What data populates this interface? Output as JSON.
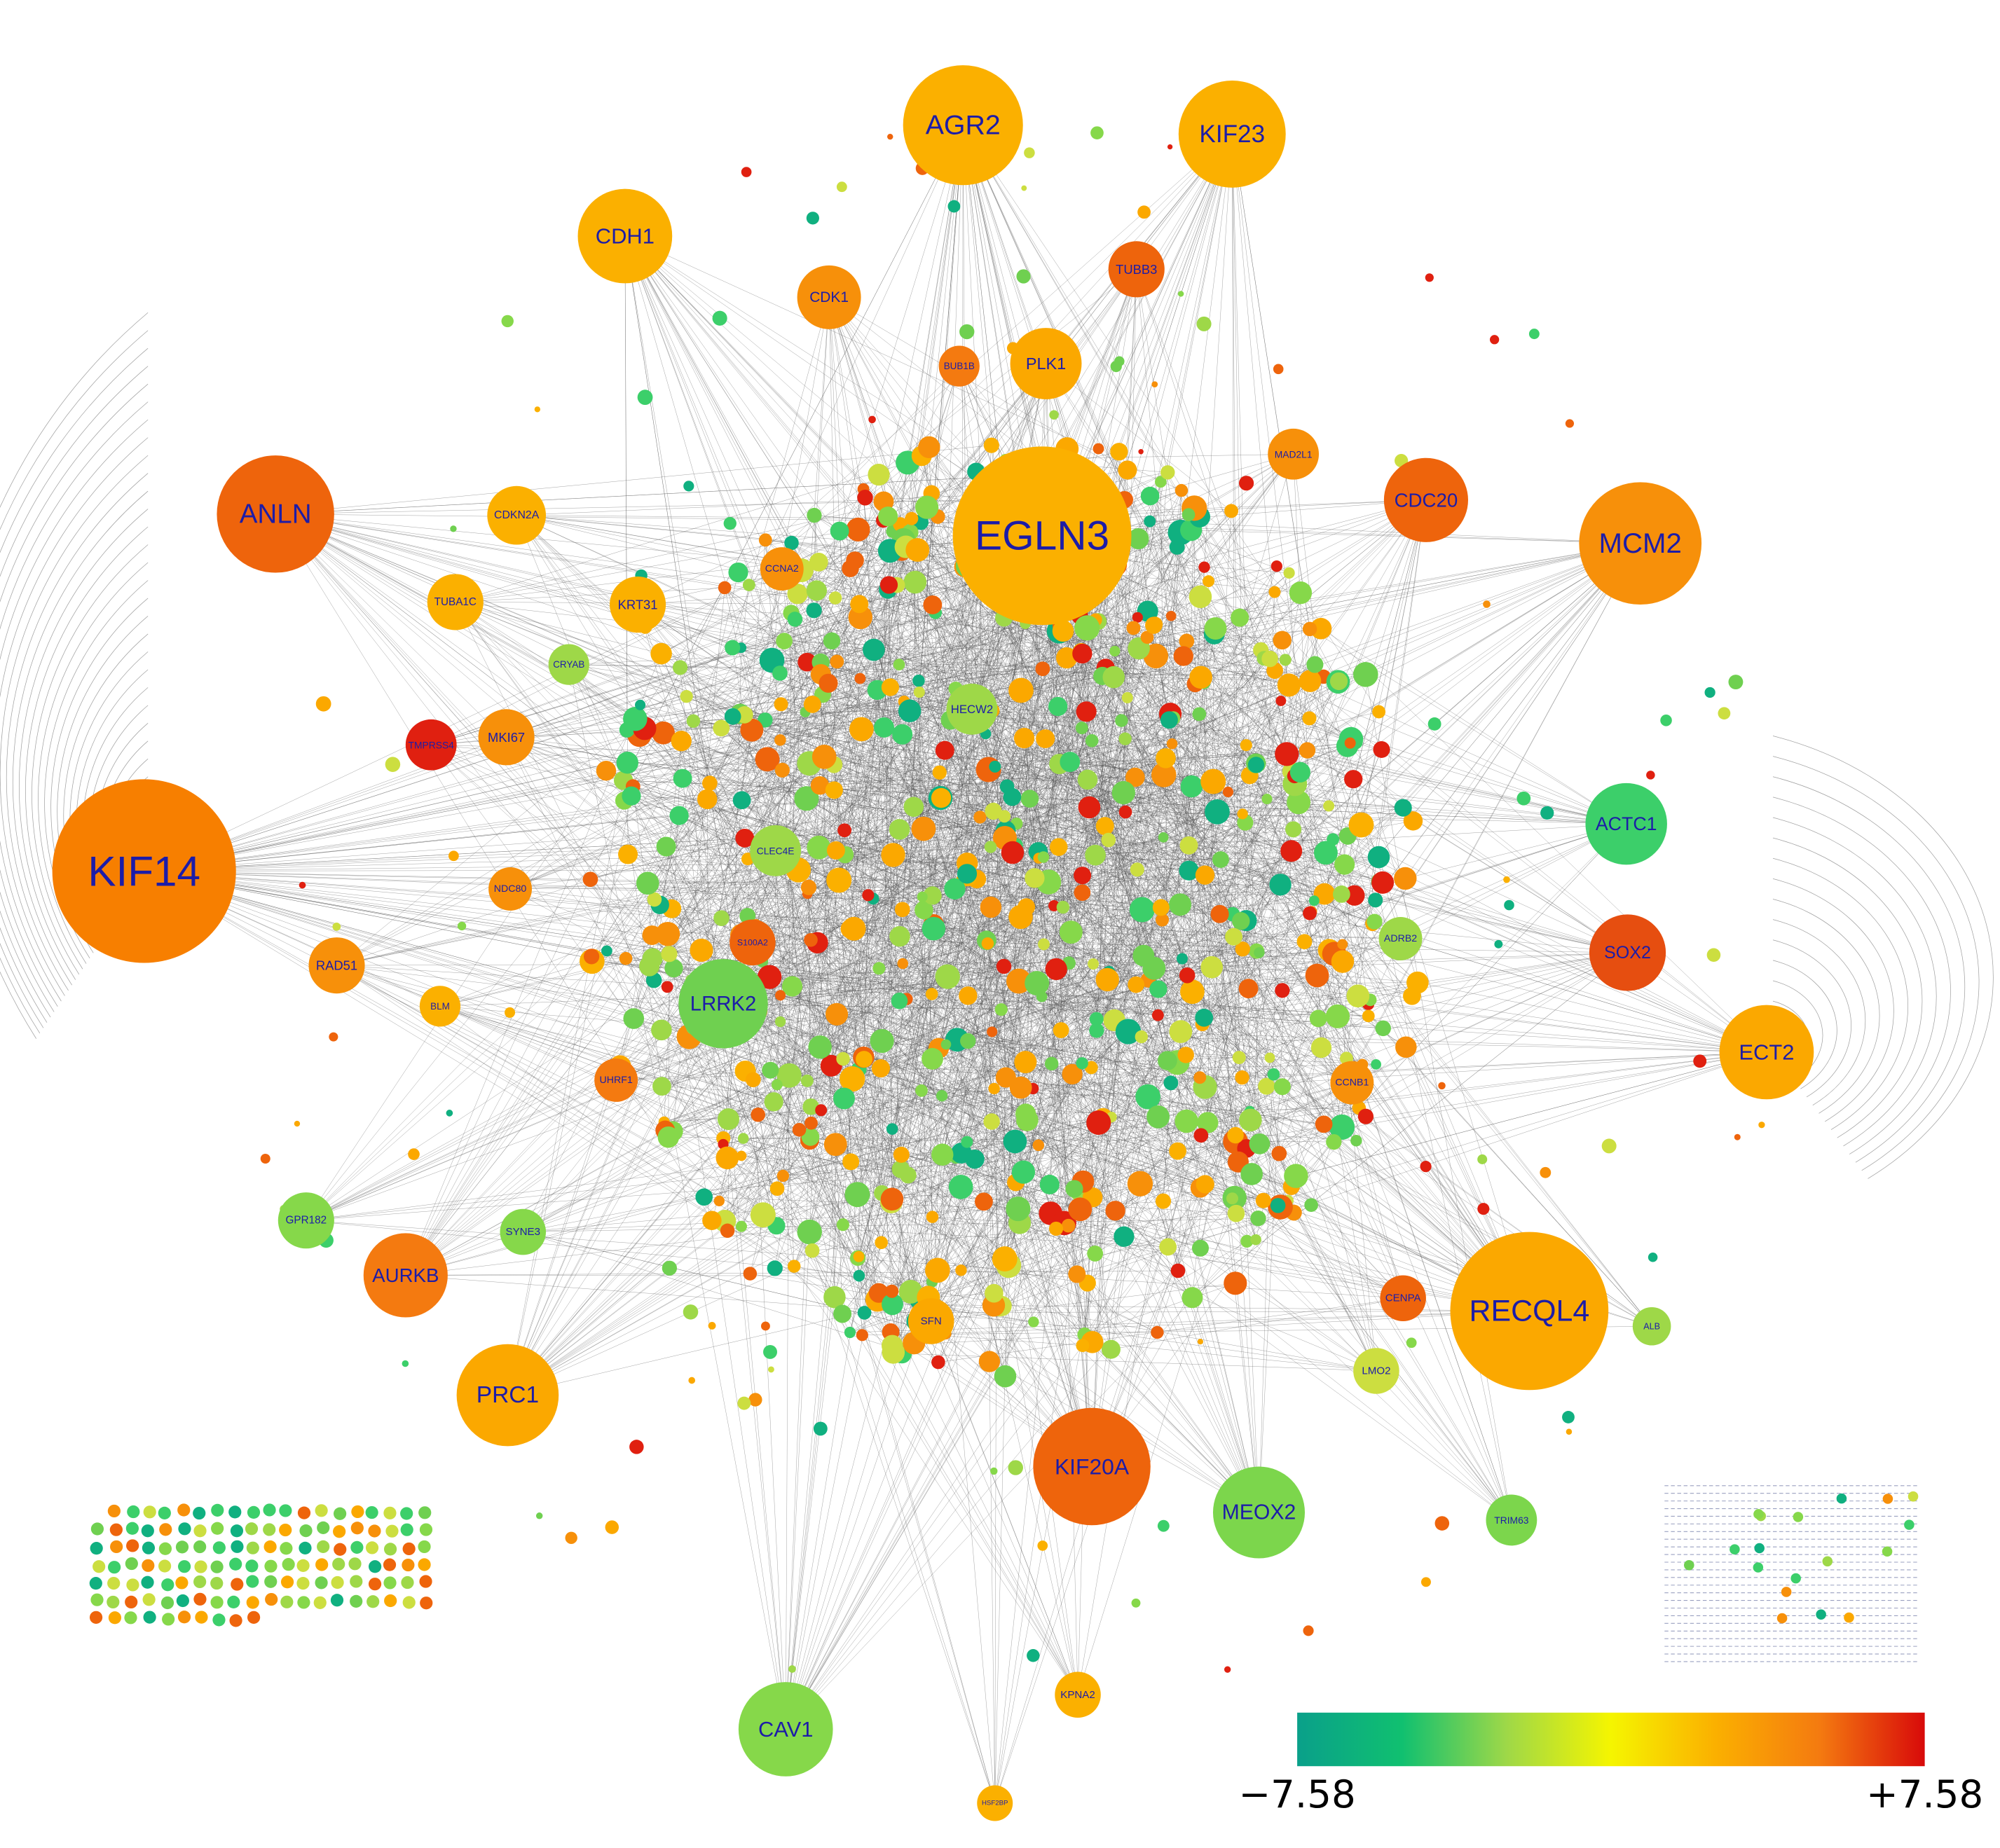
{
  "nodes": [
    {
      "label": "KIF14",
      "color": "#f77f00"
    },
    {
      "label": "ANLN",
      "color": "#ee640c"
    },
    {
      "label": "AGR2",
      "color": "#fbb000"
    },
    {
      "label": "KIF23",
      "color": "#fbb000"
    },
    {
      "label": "CDH1",
      "color": "#fbb000"
    },
    {
      "label": "EGLN3",
      "color": "#fbb000"
    },
    {
      "label": "MCM2",
      "color": "#f7900a"
    },
    {
      "label": "CDC20",
      "color": "#ee640c"
    },
    {
      "label": "ACTC1",
      "color": "#3ccf6a"
    },
    {
      "label": "SOX2",
      "color": "#e64e10"
    },
    {
      "label": "ECT2",
      "color": "#fba800"
    },
    {
      "label": "RECQL4",
      "color": "#fba800"
    },
    {
      "label": "MEOX2",
      "color": "#7cd64c"
    },
    {
      "label": "KIF20A",
      "color": "#ee640c"
    },
    {
      "label": "CAV1",
      "color": "#86d84a"
    },
    {
      "label": "PRC1",
      "color": "#fba800"
    },
    {
      "label": "AURKB",
      "color": "#f47a10"
    },
    {
      "label": "GPR182",
      "color": "#86d84a"
    },
    {
      "label": "LRRK2",
      "color": "#6fd050"
    },
    {
      "label": "TRIM63",
      "color": "#7cd64c"
    },
    {
      "label": "CDK1",
      "color": "#f7900a"
    },
    {
      "label": "PLK1",
      "color": "#fba800"
    },
    {
      "label": "TUBB3",
      "color": "#ee640c"
    },
    {
      "label": "TMPRSS4",
      "color": "#e02010"
    },
    {
      "label": "MKI67",
      "color": "#f7900a"
    },
    {
      "label": "RAD51",
      "color": "#f7900a"
    },
    {
      "label": "CDKN2A",
      "color": "#fbb000"
    },
    {
      "label": "TUBA1C",
      "color": "#fbb000"
    },
    {
      "label": "KRT31",
      "color": "#fbb000"
    },
    {
      "label": "CRYAB",
      "color": "#9ed848"
    },
    {
      "label": "HECW2",
      "color": "#9ed848"
    },
    {
      "label": "CLEC4E",
      "color": "#9ed848"
    },
    {
      "label": "S100A2",
      "color": "#ee640c"
    },
    {
      "label": "UHRF1",
      "color": "#f47a10"
    },
    {
      "label": "SFN",
      "color": "#fba800"
    },
    {
      "label": "ALB",
      "color": "#9ed848"
    },
    {
      "label": "LMO2",
      "color": "#ccde40"
    },
    {
      "label": "SYNE3",
      "color": "#86d84a"
    },
    {
      "label": "KPNA2",
      "color": "#fbb000"
    },
    {
      "label": "HSF2BP",
      "color": "#fbb000"
    },
    {
      "label": "ADRB2",
      "color": "#9ed848"
    },
    {
      "label": "CCNB1",
      "color": "#f7900a"
    },
    {
      "label": "CENPA",
      "color": "#ee640c"
    },
    {
      "label": "NDC80",
      "color": "#f7900a"
    },
    {
      "label": "BLM",
      "color": "#fbb000"
    },
    {
      "label": "CCNA2",
      "color": "#f7900a"
    },
    {
      "label": "BUB1B",
      "color": "#f47a10"
    },
    {
      "label": "MAD2L1",
      "color": "#f7900a"
    }
  ],
  "color_scale": {
    "min": "−7.58",
    "max": "+7.58",
    "colors": [
      "#0aa08a",
      "#10c070",
      "#9ed848",
      "#f5f500",
      "#fbb000",
      "#f47a10",
      "#d80a0a"
    ]
  }
}
